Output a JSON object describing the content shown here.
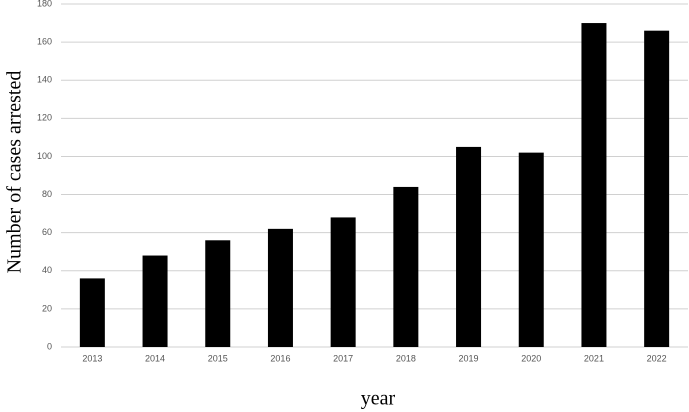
{
  "chart_data": {
    "type": "bar",
    "x_label": "year",
    "y_label": "Number of cases arrested",
    "categories": [
      "2013",
      "2014",
      "2015",
      "2016",
      "2017",
      "2018",
      "2019",
      "2020",
      "2021",
      "2022"
    ],
    "values": [
      36,
      48,
      56,
      62,
      68,
      84,
      105,
      102,
      170,
      166
    ],
    "color": "#000000",
    "ylim": [
      0,
      180
    ],
    "yticks": [
      0,
      20,
      40,
      60,
      80,
      100,
      120,
      140,
      160,
      180
    ],
    "grid": true
  }
}
